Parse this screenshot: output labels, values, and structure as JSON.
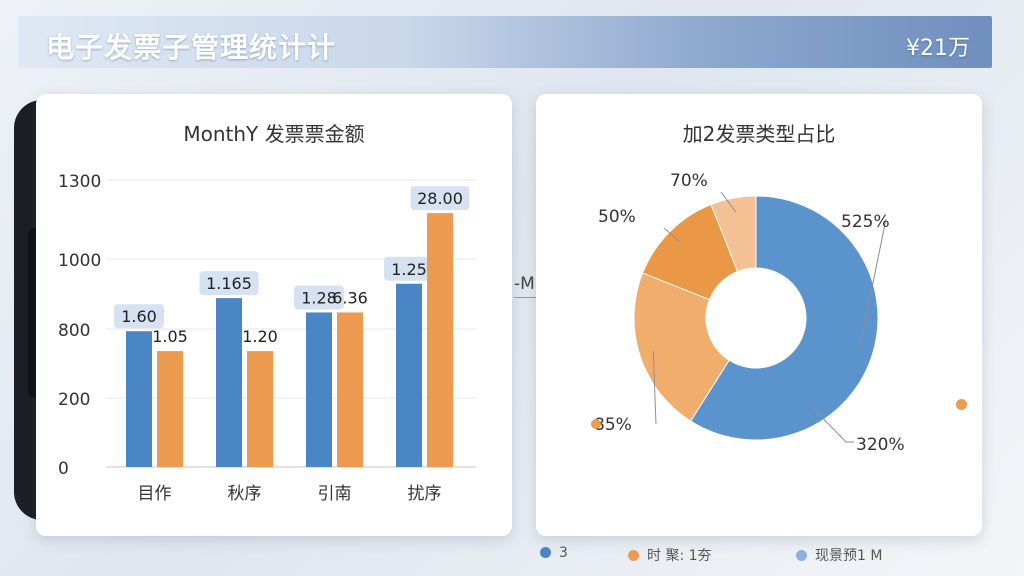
{
  "header": {
    "title": "电子发票子管理统计计",
    "amount": "¥21万"
  },
  "floating_label": "-M",
  "colors": {
    "blue": "#4a86c5",
    "orange": "#ec9a4f",
    "light_orange": "#f0b47a",
    "pale_orange": "#f3c79c"
  },
  "chart_data": [
    {
      "type": "bar",
      "title": "MonthY  发票票金额",
      "categories": [
        "目作",
        "秋序",
        "引南",
        "扰序"
      ],
      "yticks": [
        "1300",
        "1000",
        "800",
        "200",
        "0"
      ],
      "ylim": [
        0,
        1300
      ],
      "grid": true,
      "series": [
        {
          "values": [
            615,
            765,
            700,
            830
          ],
          "labels": [
            "1.60",
            "1.165",
            "1.28",
            "1.25"
          ],
          "color": "#4a86c5"
        },
        {
          "values": [
            525,
            525,
            700,
            1150
          ],
          "labels": [
            "1.05",
            "1.20",
            "6.36",
            "28.00"
          ],
          "color": "#ec9a4f"
        }
      ]
    },
    {
      "type": "pie",
      "title": "加2发票类型占比",
      "donut": true,
      "slices": [
        {
          "label": "525%",
          "value": 59,
          "color": "#5b93cc"
        },
        {
          "label": "85%",
          "value": 22,
          "color": "#f0ad6c"
        },
        {
          "label": "50%",
          "value": 13,
          "color": "#eb9846"
        },
        {
          "label": "70%",
          "value": 6,
          "color": "#f3c194"
        }
      ],
      "extra_labels": [
        "320%"
      ]
    }
  ],
  "legend": [
    {
      "label": "3",
      "color": "#4a86c5"
    },
    {
      "label": "时  聚:  1夯",
      "color": "#ec9a4f"
    },
    {
      "label": "现景预1 M",
      "color": "#8fb0d8"
    }
  ]
}
